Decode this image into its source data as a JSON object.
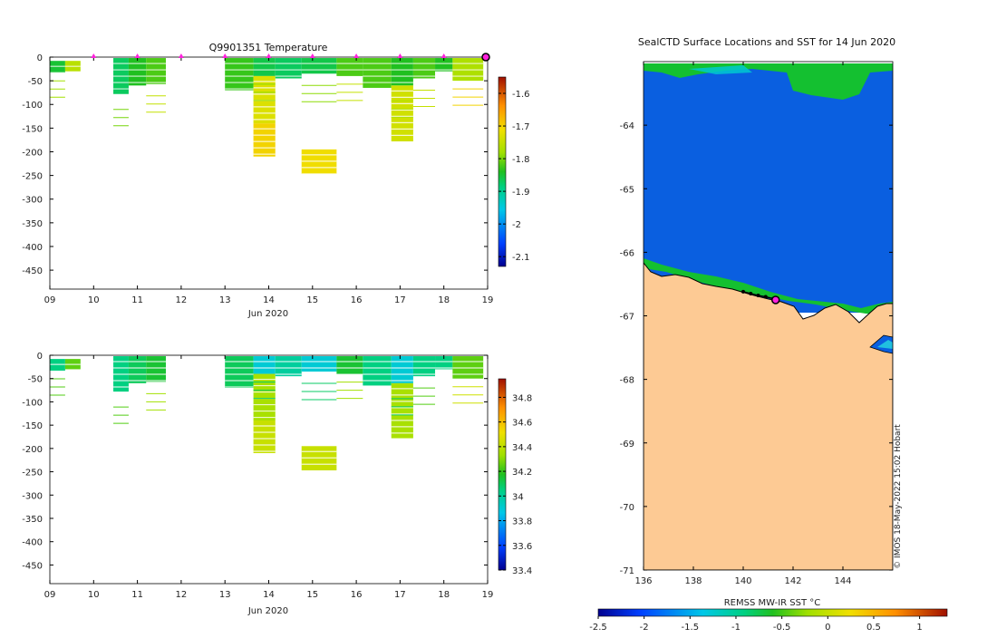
{
  "chart_data": [
    {
      "type": "heatmap",
      "title": "Q9901351  Temperature",
      "xlabel": "Jun 2020",
      "x_ticks": [
        "09",
        "10",
        "11",
        "12",
        "13",
        "14",
        "15",
        "16",
        "17",
        "18",
        "19"
      ],
      "y_ticks": [
        0,
        -50,
        -100,
        -150,
        -200,
        -250,
        -300,
        -350,
        -400,
        -450
      ],
      "ylim": [
        -490,
        0
      ],
      "colorbar_ticks": [
        -1.6,
        -1.7,
        -1.8,
        -1.9,
        -2,
        -2.1
      ],
      "colorbar_range": [
        -2.13,
        -1.55
      ],
      "surface_markers": [
        10,
        11,
        12,
        13,
        14,
        15,
        16,
        17,
        18
      ],
      "last_marker": 19,
      "profiles": [
        {
          "t0": 9.0,
          "t1": 9.35,
          "z0": -8,
          "z1": -33,
          "v": -1.85
        },
        {
          "t0": 9.35,
          "t1": 9.7,
          "z0": -8,
          "z1": -30,
          "v": -1.76
        },
        {
          "t0": 10.45,
          "t1": 10.8,
          "z0": -2,
          "z1": -78,
          "v": -1.87
        },
        {
          "t0": 10.8,
          "t1": 11.2,
          "z0": -2,
          "z1": -60,
          "v": -1.84
        },
        {
          "t0": 11.2,
          "t1": 11.65,
          "z0": -2,
          "z1": -57,
          "v": -1.82
        },
        {
          "t0": 13.0,
          "t1": 13.65,
          "z0": -2,
          "z1": -70,
          "v": -1.83
        },
        {
          "t0": 13.65,
          "t1": 14.15,
          "z0": -2,
          "z1": -40,
          "v": -1.86
        },
        {
          "t0": 13.65,
          "t1": 14.15,
          "z0": -40,
          "z1": -140,
          "v": -1.73
        },
        {
          "t0": 13.65,
          "t1": 14.15,
          "z0": -140,
          "z1": -210,
          "v": -1.7
        },
        {
          "t0": 14.15,
          "t1": 14.75,
          "z0": -2,
          "z1": -45,
          "v": -1.87
        },
        {
          "t0": 14.75,
          "t1": 15.55,
          "z0": -2,
          "z1": -35,
          "v": -1.86
        },
        {
          "t0": 14.75,
          "t1": 15.55,
          "z0": -195,
          "z1": -247,
          "v": -1.71
        },
        {
          "t0": 15.55,
          "t1": 16.15,
          "z0": -2,
          "z1": -40,
          "v": -1.82
        },
        {
          "t0": 16.15,
          "t1": 16.8,
          "z0": -2,
          "z1": -65,
          "v": -1.82
        },
        {
          "t0": 16.8,
          "t1": 17.3,
          "z0": -2,
          "z1": -60,
          "v": -1.84
        },
        {
          "t0": 16.8,
          "t1": 17.3,
          "z0": -60,
          "z1": -178,
          "v": -1.74
        },
        {
          "t0": 17.3,
          "t1": 17.8,
          "z0": -2,
          "z1": -45,
          "v": -1.82
        },
        {
          "t0": 17.8,
          "t1": 18.2,
          "z0": -2,
          "z1": -30,
          "v": -1.84
        },
        {
          "t0": 18.2,
          "t1": 18.9,
          "z0": -2,
          "z1": -50,
          "v": -1.77
        }
      ]
    },
    {
      "type": "heatmap",
      "title": "",
      "xlabel": "Jun 2020",
      "x_ticks": [
        "09",
        "10",
        "11",
        "12",
        "13",
        "14",
        "15",
        "16",
        "17",
        "18",
        "19"
      ],
      "y_ticks": [
        0,
        -50,
        -100,
        -150,
        -200,
        -250,
        -300,
        -350,
        -400,
        -450
      ],
      "ylim": [
        -490,
        0
      ],
      "colorbar_ticks": [
        34.8,
        34.6,
        34.4,
        34.2,
        34,
        33.8,
        33.6,
        33.4
      ],
      "colorbar_range": [
        33.4,
        34.95
      ],
      "profiles": [
        {
          "t0": 9.0,
          "t1": 9.35,
          "z0": -8,
          "z1": -33,
          "v": 34.05
        },
        {
          "t0": 9.35,
          "t1": 9.7,
          "z0": -8,
          "z1": -30,
          "v": 34.25
        },
        {
          "t0": 10.45,
          "t1": 10.8,
          "z0": -2,
          "z1": -78,
          "v": 34.05
        },
        {
          "t0": 10.8,
          "t1": 11.2,
          "z0": -2,
          "z1": -60,
          "v": 34.1
        },
        {
          "t0": 11.2,
          "t1": 11.65,
          "z0": -2,
          "z1": -57,
          "v": 34.15
        },
        {
          "t0": 13.0,
          "t1": 13.65,
          "z0": -2,
          "z1": -70,
          "v": 34.1
        },
        {
          "t0": 13.65,
          "t1": 14.15,
          "z0": -2,
          "z1": -40,
          "v": 33.9
        },
        {
          "t0": 13.65,
          "t1": 14.15,
          "z0": -40,
          "z1": -140,
          "v": 34.35
        },
        {
          "t0": 13.65,
          "t1": 14.15,
          "z0": -140,
          "z1": -210,
          "v": 34.42
        },
        {
          "t0": 14.15,
          "t1": 14.75,
          "z0": -2,
          "z1": -45,
          "v": 34.0
        },
        {
          "t0": 14.75,
          "t1": 15.55,
          "z0": -2,
          "z1": -35,
          "v": 33.9
        },
        {
          "t0": 14.75,
          "t1": 15.55,
          "z0": -195,
          "z1": -247,
          "v": 34.42
        },
        {
          "t0": 15.55,
          "t1": 16.15,
          "z0": -2,
          "z1": -40,
          "v": 34.15
        },
        {
          "t0": 16.15,
          "t1": 16.8,
          "z0": -2,
          "z1": -65,
          "v": 34.05
        },
        {
          "t0": 16.8,
          "t1": 17.3,
          "z0": -2,
          "z1": -60,
          "v": 33.9
        },
        {
          "t0": 16.8,
          "t1": 17.3,
          "z0": -60,
          "z1": -178,
          "v": 34.35
        },
        {
          "t0": 17.3,
          "t1": 17.8,
          "z0": -2,
          "z1": -45,
          "v": 34.05
        },
        {
          "t0": 17.8,
          "t1": 18.2,
          "z0": -2,
          "z1": -30,
          "v": 34.05
        },
        {
          "t0": 18.2,
          "t1": 18.9,
          "z0": -2,
          "z1": -50,
          "v": 34.25
        }
      ]
    },
    {
      "type": "heatmap",
      "title": "SealCTD Surface Locations and SST for 14 Jun 2020",
      "xlabel": "",
      "x_ticks": [
        136,
        138,
        140,
        142,
        144
      ],
      "y_ticks": [
        -64,
        -65,
        -66,
        -67,
        -68,
        -69,
        -70,
        -71
      ],
      "xlim": [
        136,
        146
      ],
      "ylim": [
        -71,
        -63
      ],
      "colorbar_label": "REMSS MW-IR SST °C",
      "colorbar_ticks": [
        -2.5,
        -2,
        -1.5,
        -1,
        -0.5,
        0,
        0.5,
        1
      ],
      "colorbar_range": [
        -2.5,
        1.3
      ],
      "colors": {
        "land": "#fdca94",
        "ocean": "#0a5fe0",
        "track": "#000000",
        "marker": "#ff22dd"
      },
      "track": [
        [
          140.0,
          -66.62
        ],
        [
          140.3,
          -66.65
        ],
        [
          140.6,
          -66.68
        ],
        [
          140.9,
          -66.7
        ],
        [
          141.2,
          -66.73
        ]
      ],
      "last_position": [
        141.3,
        -66.75
      ],
      "watermark": "© IMOS 18-May-2022 15:02 Hobart"
    }
  ]
}
